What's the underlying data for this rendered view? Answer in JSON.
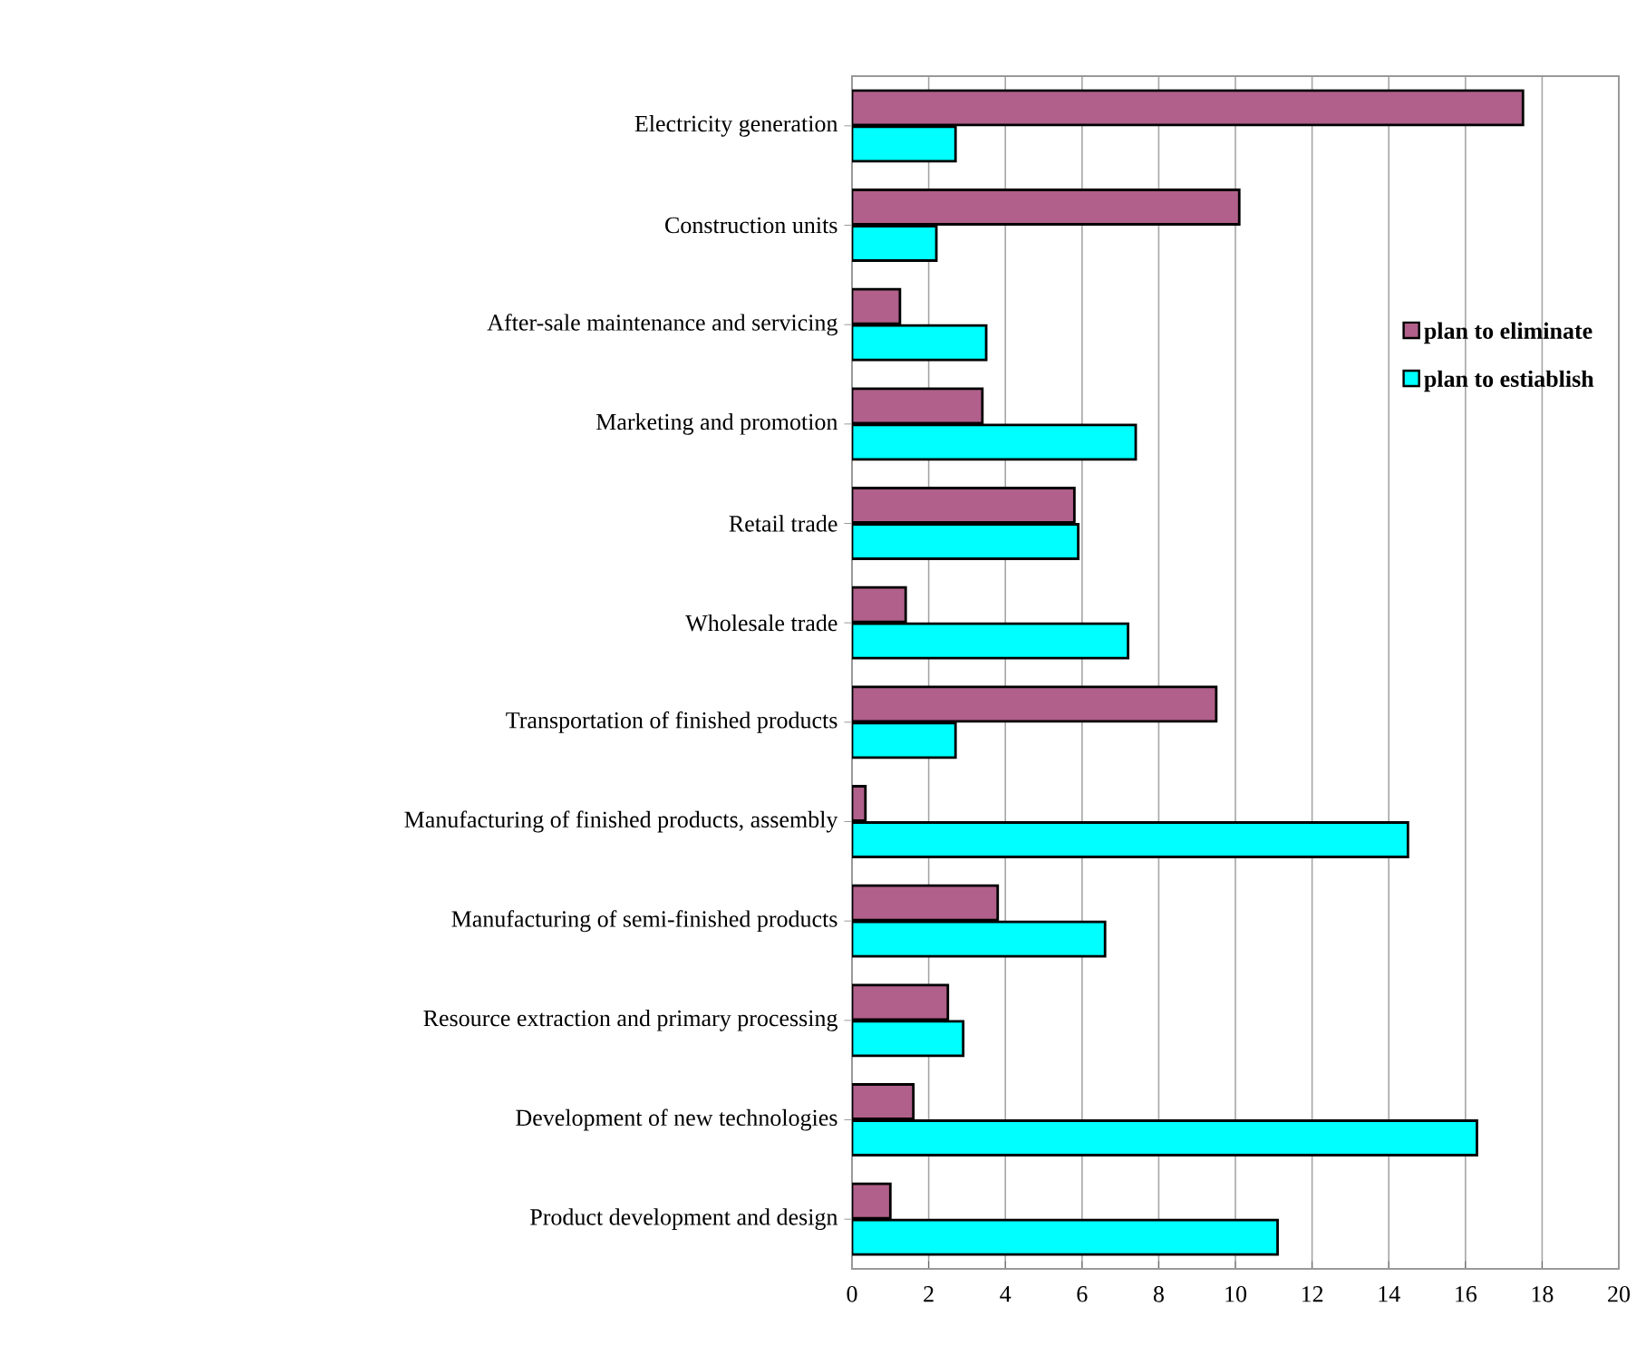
{
  "chart_data": {
    "type": "bar",
    "orientation": "horizontal",
    "categories": [
      "Electricity generation",
      "Construction units",
      "After-sale maintenance and servicing",
      "Marketing and promotion",
      "Retail trade",
      "Wholesale trade",
      "Transportation of finished products",
      "Manufacturing of finished products, assembly",
      "Manufacturing of semi-finished products",
      "Resource extraction and primary processing",
      "Development of new technologies",
      "Product development and design"
    ],
    "series": [
      {
        "name": "plan to eliminate",
        "color": "#b0608a",
        "values": [
          17.5,
          10.1,
          1.25,
          3.4,
          5.8,
          1.4,
          9.5,
          0.35,
          3.8,
          2.5,
          1.6,
          1.0
        ]
      },
      {
        "name": "plan to estiablish",
        "color": "#00ffff",
        "values": [
          2.7,
          2.2,
          3.5,
          7.4,
          5.9,
          7.2,
          2.7,
          14.5,
          6.6,
          2.9,
          16.3,
          11.1
        ]
      }
    ],
    "xlim": [
      0,
      20
    ],
    "xticks": [
      0,
      2,
      4,
      6,
      8,
      10,
      12,
      14,
      16,
      18,
      20
    ],
    "grid": "x",
    "legend": "right"
  }
}
